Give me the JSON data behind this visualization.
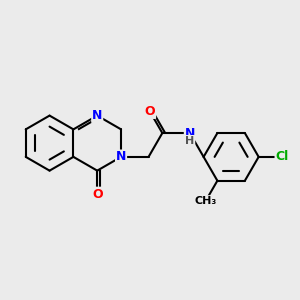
{
  "background_color": "#ebebeb",
  "atom_colors": {
    "N": "#0000ff",
    "O": "#ff0000",
    "Cl": "#00aa00",
    "C": "#000000",
    "H": "#555555"
  },
  "bond_width": 1.5,
  "font_size": 9
}
